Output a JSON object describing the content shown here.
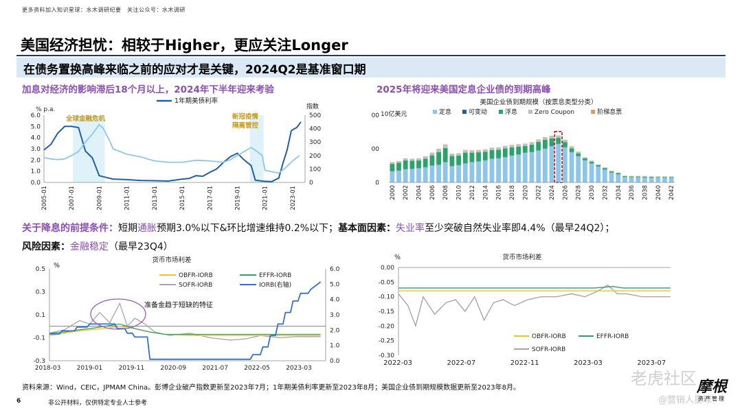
{
  "header_note": "更多资料加入知识星球：水木调研纪要　关注公众号：水木调研",
  "title": "美国经济担忧：相较于Higher，更应关注Longer",
  "subtitle": "在债务置换高峰来临之前的应对才是关键，2024Q2是基准窗口期",
  "left_heading": "加息对经济的影响滞后18个月以上，2024年下半年迎来考验",
  "right_heading": "2025年将迎来美国定息企业债的到期高峰",
  "line3": {
    "p1": "关于降息的前提条件：",
    "p2": "短期",
    "p3": "通胀",
    "p4": "预期3.0%以下&环比增速维持0.2%以下；",
    "p5": "基本面因素：",
    "p6": "失业率",
    "p7": "至少突破自然失业率即4.4%（最早24Q2）；"
  },
  "line4": {
    "p1": "风险因素：",
    "p2": "金融稳定",
    "p3": "（最早23Q4）"
  },
  "source": "资料来源：Wind，CEIC，JPMAM China。彭博企业破产指数更新至2023年7月；1年期美债利率更新至2023年8月；美国企业债到期规模数据更新至2023年8月。",
  "footer": "非公开材料，仅供特定专业人士参考",
  "page_number": "6",
  "watermark": {
    "text1": "老虎社区",
    "text2": "@营销人星球",
    "logo_main": "摩根",
    "logo_sub": "资产管理"
  },
  "colors": {
    "accent_purple": "#8b4fb3",
    "navy": "#1f3864",
    "band": "#dbe8f6"
  },
  "chart_data": [
    {
      "type": "line",
      "id": "chart1",
      "title": "",
      "legend": [
        "1年期美债利率"
      ],
      "ylabel_left": "% p.a.",
      "ylabel_right": "指数",
      "ylim_left": [
        0,
        6
      ],
      "ylim_right": [
        0,
        500
      ],
      "yticks_left": [
        "0.0",
        "1.0",
        "2.0",
        "3.0",
        "4.0",
        "5.0",
        "6.0"
      ],
      "yticks_right": [
        "0",
        "100",
        "200",
        "300",
        "400",
        "500"
      ],
      "x_ticks": [
        "2005-01",
        "2007-01",
        "2009-01",
        "2011-01",
        "2013-01",
        "2015-01",
        "2017-01",
        "2019-01",
        "2021-01",
        "2023-01"
      ],
      "annotations": [
        "全球金融危机",
        "新冠疫情",
        "隔离管控"
      ],
      "shaded": [
        [
          2007.1,
          2009.4
        ],
        [
          2019.9,
          2020.9
        ]
      ],
      "series": [
        {
          "name": "1年期美债利率",
          "axis": "left",
          "color": "#1f5fa8",
          "x": [
            2005,
            2005.5,
            2006,
            2006.5,
            2007,
            2007.5,
            2008,
            2008.5,
            2009,
            2009.5,
            2010,
            2011,
            2012,
            2013,
            2014,
            2015,
            2015.5,
            2016,
            2016.5,
            2017,
            2017.5,
            2018,
            2018.5,
            2019,
            2019.5,
            2020,
            2020.3,
            2020.8,
            2021,
            2021.5,
            2022,
            2022.3,
            2022.6,
            2022.9,
            2023,
            2023.3,
            2023.6
          ],
          "y": [
            2.9,
            3.4,
            4.4,
            5.0,
            5.0,
            4.9,
            2.8,
            2.2,
            0.6,
            0.45,
            0.3,
            0.25,
            0.18,
            0.15,
            0.12,
            0.3,
            0.35,
            0.6,
            0.55,
            0.9,
            1.2,
            1.8,
            2.3,
            2.6,
            2.0,
            1.5,
            0.2,
            0.12,
            0.1,
            0.08,
            0.4,
            1.7,
            2.9,
            4.6,
            4.7,
            4.9,
            5.4
          ]
        },
        {
          "name": "彭博企业破产指数",
          "axis": "right",
          "color": "#8ec6ea",
          "x": [
            2005,
            2005.5,
            2006,
            2006.5,
            2007,
            2007.5,
            2008,
            2008.5,
            2009,
            2009.3,
            2009.8,
            2010,
            2011,
            2012,
            2013,
            2014,
            2015,
            2016,
            2017,
            2018,
            2018.5,
            2019,
            2019.5,
            2020,
            2020.3,
            2020.8,
            2021,
            2022,
            2022.5,
            2023,
            2023.5
          ],
          "y": [
            185,
            175,
            170,
            175,
            200,
            230,
            300,
            360,
            430,
            400,
            300,
            250,
            210,
            190,
            160,
            150,
            150,
            165,
            160,
            150,
            170,
            200,
            230,
            260,
            240,
            200,
            90,
            70,
            110,
            160,
            200
          ]
        }
      ]
    },
    {
      "type": "bar",
      "id": "chart2",
      "title": "美国企业债到期规模（按票息类型分类）",
      "ylabel": "10亿美元",
      "ylim": [
        0,
        2000
      ],
      "yticks": [
        "0",
        "1000",
        "2000"
      ],
      "legend": [
        "定息",
        "可变动",
        "浮息",
        "Zero Coupon",
        "阶梯息票"
      ],
      "x_tick_labels": [
        "2000",
        "2002",
        "2004",
        "2006",
        "2008",
        "2010",
        "2012",
        "2014",
        "2016",
        "2018",
        "2020",
        "2022",
        "2024",
        "2026",
        "2028",
        "2030",
        "2032",
        "2034",
        "2036",
        "2038",
        "2040",
        "2042"
      ],
      "highlight_year": 2025,
      "categories": [
        2000,
        2001,
        2002,
        2003,
        2004,
        2005,
        2006,
        2007,
        2008,
        2009,
        2010,
        2011,
        2012,
        2013,
        2014,
        2015,
        2016,
        2017,
        2018,
        2019,
        2020,
        2021,
        2022,
        2023,
        2024,
        2025,
        2026,
        2027,
        2028,
        2029,
        2030,
        2031,
        2032,
        2033,
        2034,
        2035,
        2036,
        2037,
        2038,
        2039,
        2040,
        2041,
        2042
      ],
      "series": [
        {
          "name": "定息",
          "color": "#8ec6ea",
          "values": [
            330,
            350,
            390,
            400,
            420,
            450,
            500,
            520,
            600,
            480,
            510,
            560,
            600,
            620,
            650,
            700,
            720,
            750,
            800,
            830,
            880,
            900,
            950,
            1000,
            1080,
            1150,
            1050,
            900,
            780,
            650,
            560,
            470,
            380,
            290,
            240,
            160,
            150,
            150,
            145,
            140,
            140,
            140,
            140
          ]
        },
        {
          "name": "可变动",
          "color": "#1f5fa8",
          "values": [
            5,
            5,
            5,
            5,
            5,
            5,
            5,
            5,
            5,
            5,
            5,
            5,
            5,
            5,
            5,
            5,
            5,
            5,
            5,
            5,
            5,
            5,
            5,
            5,
            10,
            15,
            10,
            5,
            5,
            5,
            5,
            5,
            5,
            5,
            5,
            5,
            5,
            5,
            5,
            5,
            5,
            5,
            5
          ]
        },
        {
          "name": "浮息",
          "color": "#2ca36b",
          "values": [
            220,
            230,
            260,
            240,
            230,
            250,
            300,
            380,
            420,
            300,
            280,
            320,
            280,
            270,
            260,
            260,
            250,
            260,
            240,
            230,
            200,
            220,
            250,
            260,
            220,
            160,
            140,
            110,
            80,
            60,
            50,
            40,
            40,
            30,
            30,
            20,
            20,
            20,
            20,
            20,
            15,
            15,
            15
          ]
        },
        {
          "name": "Zero Coupon",
          "color": "#bfbfbf",
          "values": [
            40,
            40,
            50,
            50,
            50,
            60,
            70,
            80,
            90,
            60,
            60,
            70,
            60,
            60,
            60,
            60,
            60,
            60,
            60,
            60,
            60,
            60,
            60,
            70,
            70,
            60,
            60,
            50,
            40,
            30,
            30,
            20,
            20,
            20,
            15,
            15,
            15,
            15,
            15,
            15,
            15,
            15,
            15
          ]
        },
        {
          "name": "阶梯息票",
          "color": "#c9a46a",
          "values": [
            10,
            10,
            10,
            10,
            10,
            10,
            10,
            15,
            15,
            10,
            10,
            10,
            10,
            10,
            10,
            10,
            10,
            10,
            10,
            10,
            10,
            10,
            10,
            10,
            10,
            10,
            10,
            10,
            10,
            5,
            5,
            5,
            5,
            5,
            5,
            5,
            5,
            5,
            5,
            5,
            5,
            5,
            5
          ]
        }
      ]
    },
    {
      "type": "line",
      "id": "chart3",
      "title": "货币市场利差",
      "ylabel_left": "%",
      "ylim_left": [
        -0.3,
        0.5
      ],
      "ylim_right": [
        0,
        6.0
      ],
      "yticks_left": [
        "0.5",
        "0.3",
        "0.1",
        "-0.1",
        "-0.3"
      ],
      "yticks_right": [
        "6.0",
        "5.0",
        "4.0",
        "3.0",
        "2.0",
        "1.0",
        "0.0"
      ],
      "x_ticks": [
        "2018-03",
        "2019-01",
        "2019-11",
        "2020-09",
        "2021-07",
        "2022-05",
        "2023-03"
      ],
      "legend": [
        "OBFR-IORB",
        "EFFR-IORB",
        "SOFR-IORB",
        "IORB(右轴)"
      ],
      "annotation": "准备金趋于短缺的特征",
      "series": [
        {
          "name": "OBFR-IORB",
          "axis": "left",
          "color": "#f0c419",
          "x": [
            2018.2,
            2018.5,
            2018.8,
            2019.0,
            2019.3,
            2019.6,
            2019.9,
            2020.2,
            2020.5,
            2021.0,
            2021.5,
            2022.0,
            2022.5,
            2023.0,
            2023.6
          ],
          "y": [
            -0.08,
            -0.06,
            -0.04,
            -0.03,
            -0.02,
            0.0,
            -0.02,
            -0.05,
            -0.07,
            -0.08,
            -0.08,
            -0.08,
            -0.08,
            -0.08,
            -0.08
          ]
        },
        {
          "name": "EFFR-IORB",
          "axis": "left",
          "color": "#2ca36b",
          "x": [
            2018.2,
            2018.5,
            2018.8,
            2019.0,
            2019.3,
            2019.6,
            2019.9,
            2020.2,
            2020.5,
            2021.0,
            2021.5,
            2022.0,
            2022.5,
            2023.0,
            2023.6
          ],
          "y": [
            -0.06,
            -0.05,
            -0.03,
            -0.02,
            0.0,
            0.02,
            -0.02,
            -0.05,
            -0.07,
            -0.07,
            -0.07,
            -0.07,
            -0.07,
            -0.07,
            -0.07
          ]
        },
        {
          "name": "SOFR-IORB",
          "axis": "left",
          "color": "#a6a6a6",
          "x": [
            2018.2,
            2018.5,
            2018.8,
            2019.0,
            2019.2,
            2019.4,
            2019.6,
            2019.75,
            2019.9,
            2020.1,
            2020.3,
            2020.6,
            2021.0,
            2021.4,
            2021.8,
            2022.1,
            2022.4,
            2022.8,
            2023.1,
            2023.4,
            2023.6
          ],
          "y": [
            -0.06,
            -0.03,
            0.05,
            0.02,
            0.12,
            0.03,
            0.2,
            0.0,
            0.07,
            0.02,
            -0.05,
            -0.08,
            -0.06,
            -0.1,
            -0.12,
            -0.11,
            -0.08,
            -0.1,
            -0.09,
            -0.09,
            -0.09
          ]
        },
        {
          "name": "IORB(右轴)",
          "axis": "right",
          "color": "#2f6fd6",
          "x": [
            2018.2,
            2018.4,
            2018.45,
            2018.7,
            2018.75,
            2018.95,
            2019.0,
            2019.5,
            2019.55,
            2019.7,
            2019.75,
            2019.85,
            2019.9,
            2020.15,
            2020.2,
            2022.2,
            2022.25,
            2022.4,
            2022.45,
            2022.55,
            2022.6,
            2022.7,
            2022.75,
            2022.85,
            2022.9,
            2023.0,
            2023.05,
            2023.15,
            2023.2,
            2023.35,
            2023.4,
            2023.6
          ],
          "y": [
            1.75,
            1.75,
            1.95,
            1.95,
            2.2,
            2.2,
            2.4,
            2.4,
            2.1,
            2.1,
            1.8,
            1.8,
            1.55,
            1.55,
            0.1,
            0.1,
            0.4,
            0.4,
            0.9,
            0.9,
            1.65,
            1.65,
            2.4,
            2.4,
            3.15,
            3.15,
            3.9,
            3.9,
            4.4,
            4.4,
            4.65,
            5.15
          ]
        }
      ]
    },
    {
      "type": "line",
      "id": "chart4",
      "title": "货币市场利差",
      "ylabel_left": "%",
      "ylim_left": [
        -0.3,
        0.0
      ],
      "yticks_left": [
        "0.00",
        "-0.05",
        "-0.10",
        "-0.15",
        "-0.20",
        "-0.25",
        "-0.30"
      ],
      "x_ticks": [
        "2022-03",
        "2022-07",
        "2022-11",
        "2023-03",
        "2023-07"
      ],
      "legend": [
        "OBFR-IORB",
        "EFFR-IORB",
        "SOFR-IORB"
      ],
      "series": [
        {
          "name": "OBFR-IORB",
          "color": "#f0c419",
          "x": [
            2022.17,
            2022.3,
            2022.5,
            2022.7,
            2022.9,
            2023.1,
            2023.3,
            2023.5,
            2023.6
          ],
          "y": [
            -0.08,
            -0.08,
            -0.08,
            -0.08,
            -0.08,
            -0.08,
            -0.08,
            -0.08,
            -0.08
          ]
        },
        {
          "name": "EFFR-IORB",
          "color": "#2ca36b",
          "x": [
            2022.17,
            2022.3,
            2022.5,
            2022.7,
            2022.9,
            2023.1,
            2023.2,
            2023.3,
            2023.35,
            2023.5,
            2023.6
          ],
          "y": [
            -0.07,
            -0.07,
            -0.07,
            -0.07,
            -0.07,
            -0.07,
            -0.07,
            -0.065,
            -0.07,
            -0.07,
            -0.07
          ]
        },
        {
          "name": "SOFR-IORB",
          "color": "#a6a6a6",
          "x": [
            2022.17,
            2022.22,
            2022.26,
            2022.3,
            2022.36,
            2022.42,
            2022.47,
            2022.52,
            2022.57,
            2022.62,
            2022.67,
            2022.72,
            2022.78,
            2022.85,
            2022.92,
            2023.0,
            2023.08,
            2023.15,
            2023.22,
            2023.27,
            2023.32,
            2023.37,
            2023.45,
            2023.52,
            2023.6
          ],
          "y": [
            -0.09,
            -0.13,
            -0.2,
            -0.1,
            -0.16,
            -0.12,
            -0.11,
            -0.15,
            -0.1,
            -0.18,
            -0.12,
            -0.11,
            -0.13,
            -0.11,
            -0.1,
            -0.1,
            -0.09,
            -0.1,
            -0.08,
            -0.06,
            -0.09,
            -0.09,
            -0.1,
            -0.1,
            -0.1
          ]
        }
      ]
    }
  ]
}
